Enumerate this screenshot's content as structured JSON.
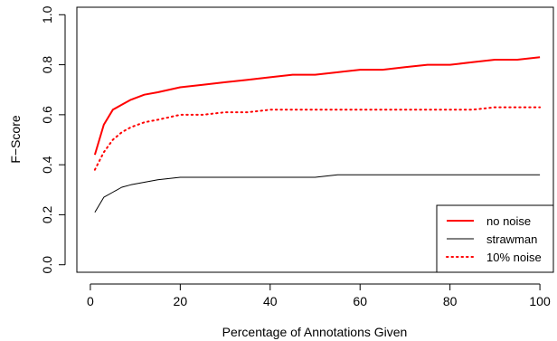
{
  "chart_data": {
    "type": "line",
    "xlabel": "Percentage of Annotations Given",
    "ylabel": "F−Score",
    "xlim": [
      -3,
      103
    ],
    "ylim": [
      -0.03,
      1.03
    ],
    "x_ticks": [
      0,
      20,
      40,
      60,
      80,
      100
    ],
    "y_ticks": [
      "0.0",
      "0.2",
      "0.4",
      "0.6",
      "0.8",
      "1.0"
    ],
    "legend_position": "bottom-right",
    "grid": false,
    "x": [
      1,
      3,
      5,
      7,
      9,
      12,
      15,
      20,
      25,
      30,
      35,
      40,
      45,
      50,
      55,
      60,
      65,
      70,
      75,
      80,
      85,
      90,
      95,
      100
    ],
    "series": [
      {
        "name": "no noise",
        "color": "#ff0000",
        "style": "solid",
        "width": 2,
        "values": [
          0.44,
          0.56,
          0.62,
          0.64,
          0.66,
          0.68,
          0.69,
          0.71,
          0.72,
          0.73,
          0.74,
          0.75,
          0.76,
          0.76,
          0.77,
          0.78,
          0.78,
          0.79,
          0.8,
          0.8,
          0.81,
          0.82,
          0.82,
          0.83
        ]
      },
      {
        "name": "strawman",
        "color": "#000000",
        "style": "solid",
        "width": 1,
        "values": [
          0.21,
          0.27,
          0.29,
          0.31,
          0.32,
          0.33,
          0.34,
          0.35,
          0.35,
          0.35,
          0.35,
          0.35,
          0.35,
          0.35,
          0.36,
          0.36,
          0.36,
          0.36,
          0.36,
          0.36,
          0.36,
          0.36,
          0.36,
          0.36
        ]
      },
      {
        "name": "10% noise",
        "color": "#ff0000",
        "style": "dotted",
        "width": 2,
        "values": [
          0.38,
          0.45,
          0.5,
          0.53,
          0.55,
          0.57,
          0.58,
          0.6,
          0.6,
          0.61,
          0.61,
          0.62,
          0.62,
          0.62,
          0.62,
          0.62,
          0.62,
          0.62,
          0.62,
          0.62,
          0.62,
          0.63,
          0.63,
          0.63
        ]
      }
    ]
  }
}
